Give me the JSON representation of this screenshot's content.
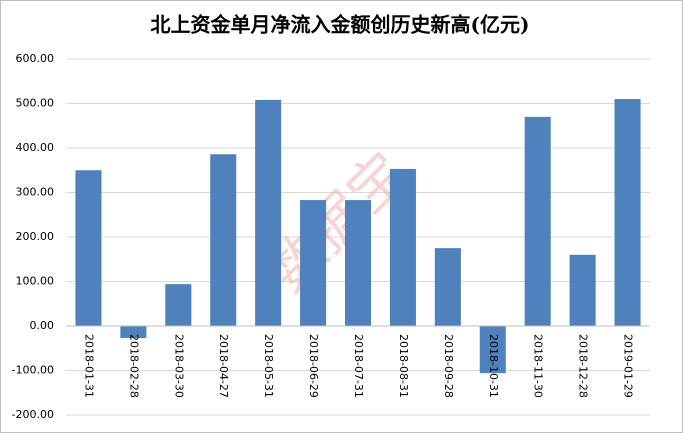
{
  "chart_data": {
    "type": "bar",
    "title": "北上资金单月净流入金额创历史新高(亿元)",
    "watermark": "数据宝",
    "categories": [
      "2018-01-31",
      "2018-02-28",
      "2018-03-30",
      "2018-04-27",
      "2018-05-31",
      "2018-06-29",
      "2018-07-31",
      "2018-08-31",
      "2018-09-28",
      "2018-10-31",
      "2018-11-30",
      "2018-12-28",
      "2019-01-29"
    ],
    "values": [
      350,
      -27,
      94,
      386,
      508,
      283,
      283,
      353,
      175,
      -106,
      470,
      160,
      510
    ],
    "color": "#4f81bd",
    "ylim": [
      -200,
      600
    ],
    "yticks": [
      {
        "value": -200,
        "label": "-200.00"
      },
      {
        "value": -100,
        "label": "-100.00"
      },
      {
        "value": 0,
        "label": "0.00"
      },
      {
        "value": 100,
        "label": "100.00"
      },
      {
        "value": 200,
        "label": "200.00"
      },
      {
        "value": 300,
        "label": "300.00"
      },
      {
        "value": 400,
        "label": "400.00"
      },
      {
        "value": 500,
        "label": "500.00"
      },
      {
        "value": 600,
        "label": "600.00"
      }
    ],
    "grid": true
  }
}
